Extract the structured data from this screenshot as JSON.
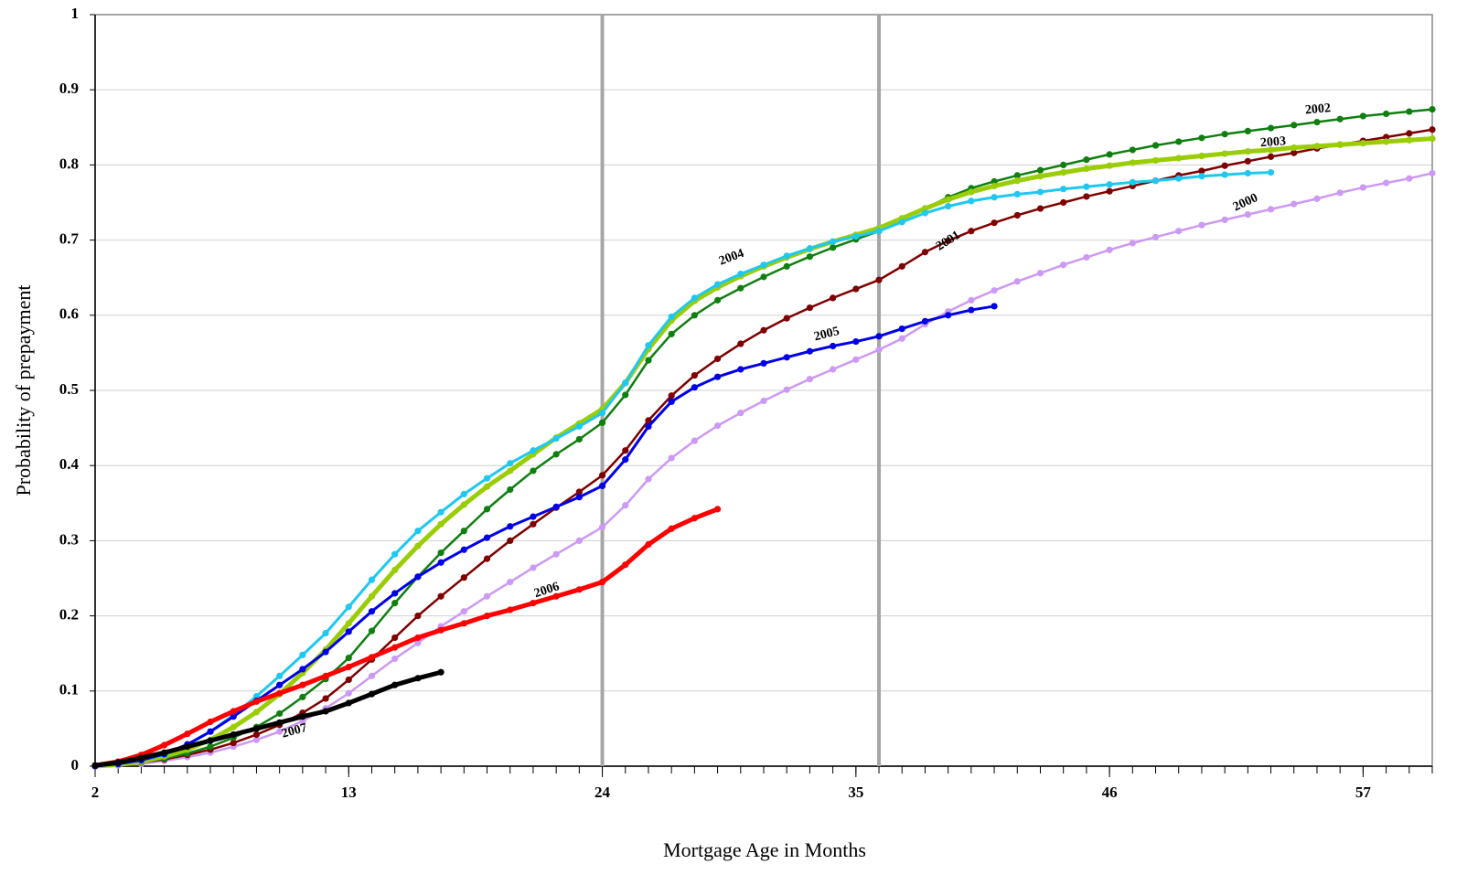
{
  "chart_data": {
    "type": "line",
    "x_label": "Mortgage Age in Months",
    "y_label": "Probability of prepayment",
    "x": [
      2,
      3,
      4,
      5,
      6,
      7,
      8,
      9,
      10,
      11,
      12,
      13,
      14,
      15,
      16,
      17,
      18,
      19,
      20,
      21,
      22,
      23,
      24,
      25,
      26,
      27,
      28,
      29,
      30,
      31,
      32,
      33,
      34,
      35,
      36,
      37,
      38,
      39,
      40,
      41,
      42,
      43,
      44,
      45,
      46,
      47,
      48,
      49,
      50,
      51,
      52,
      53,
      54,
      55,
      56,
      57,
      58,
      59,
      60
    ],
    "xlim": [
      2,
      60
    ],
    "xticks": [
      2,
      13,
      24,
      35,
      46,
      57
    ],
    "ylim": [
      0,
      1
    ],
    "yticks": [
      0,
      0.1,
      0.2,
      0.3,
      0.4,
      0.5,
      0.6,
      0.7,
      0.8,
      0.9,
      1
    ],
    "grid": true,
    "reference_lines_x": [
      24,
      36
    ],
    "series": [
      {
        "name": "2000",
        "color": "#cc99f5",
        "values": [
          0,
          0.001,
          0.003,
          0.007,
          0.012,
          0.018,
          0.026,
          0.035,
          0.046,
          0.06,
          0.077,
          0.097,
          0.12,
          0.143,
          0.164,
          0.186,
          0.206,
          0.226,
          0.245,
          0.264,
          0.282,
          0.3,
          0.318,
          0.347,
          0.382,
          0.41,
          0.433,
          0.453,
          0.47,
          0.486,
          0.501,
          0.515,
          0.528,
          0.541,
          0.554,
          0.569,
          0.588,
          0.605,
          0.62,
          0.633,
          0.645,
          0.656,
          0.667,
          0.677,
          0.687,
          0.696,
          0.704,
          0.712,
          0.72,
          0.727,
          0.734,
          0.741,
          0.748,
          0.755,
          0.763,
          0.77,
          0.776,
          0.782,
          0.789
        ]
      },
      {
        "name": "2001",
        "color": "#7f0000",
        "values": [
          0,
          0.002,
          0.005,
          0.009,
          0.015,
          0.022,
          0.031,
          0.042,
          0.055,
          0.071,
          0.09,
          0.115,
          0.142,
          0.171,
          0.2,
          0.226,
          0.251,
          0.276,
          0.3,
          0.322,
          0.344,
          0.365,
          0.387,
          0.42,
          0.46,
          0.493,
          0.52,
          0.542,
          0.562,
          0.58,
          0.596,
          0.61,
          0.623,
          0.635,
          0.647,
          0.665,
          0.684,
          0.699,
          0.712,
          0.723,
          0.733,
          0.742,
          0.75,
          0.758,
          0.765,
          0.772,
          0.779,
          0.786,
          0.792,
          0.799,
          0.805,
          0.811,
          0.816,
          0.822,
          0.827,
          0.832,
          0.837,
          0.842,
          0.847
        ]
      },
      {
        "name": "2002",
        "color": "#0f7f0f",
        "values": [
          0,
          0.002,
          0.005,
          0.01,
          0.017,
          0.026,
          0.038,
          0.052,
          0.07,
          0.092,
          0.116,
          0.144,
          0.18,
          0.217,
          0.252,
          0.284,
          0.313,
          0.342,
          0.368,
          0.393,
          0.415,
          0.435,
          0.457,
          0.494,
          0.54,
          0.575,
          0.6,
          0.62,
          0.636,
          0.651,
          0.665,
          0.678,
          0.69,
          0.701,
          0.712,
          0.727,
          0.742,
          0.757,
          0.769,
          0.778,
          0.786,
          0.793,
          0.8,
          0.807,
          0.814,
          0.82,
          0.826,
          0.831,
          0.836,
          0.841,
          0.845,
          0.849,
          0.853,
          0.857,
          0.861,
          0.865,
          0.868,
          0.871,
          0.874
        ]
      },
      {
        "name": "2003",
        "color": "#9acd06",
        "values": [
          0,
          0.002,
          0.006,
          0.013,
          0.022,
          0.035,
          0.052,
          0.072,
          0.096,
          0.124,
          0.155,
          0.19,
          0.226,
          0.261,
          0.293,
          0.322,
          0.348,
          0.372,
          0.393,
          0.415,
          0.437,
          0.456,
          0.475,
          0.51,
          0.555,
          0.593,
          0.619,
          0.637,
          0.652,
          0.665,
          0.677,
          0.688,
          0.698,
          0.707,
          0.716,
          0.729,
          0.742,
          0.754,
          0.764,
          0.772,
          0.779,
          0.785,
          0.79,
          0.795,
          0.799,
          0.803,
          0.806,
          0.809,
          0.812,
          0.815,
          0.818,
          0.82,
          0.823,
          0.825,
          0.827,
          0.829,
          0.831,
          0.833,
          0.835
        ]
      },
      {
        "name": "2004",
        "color": "#1ec8f0",
        "values": [
          0,
          0.003,
          0.008,
          0.015,
          0.028,
          0.046,
          0.068,
          0.093,
          0.12,
          0.148,
          0.177,
          0.212,
          0.248,
          0.282,
          0.313,
          0.338,
          0.362,
          0.383,
          0.403,
          0.42,
          0.436,
          0.452,
          0.47,
          0.51,
          0.56,
          0.598,
          0.623,
          0.641,
          0.655,
          0.667,
          0.679,
          0.689,
          0.698,
          0.705,
          0.712,
          0.724,
          0.736,
          0.745,
          0.752,
          0.757,
          0.761,
          0.764,
          0.768,
          0.771,
          0.774,
          0.777,
          0.779,
          0.782,
          0.785,
          0.787,
          0.789,
          0.79,
          null,
          null,
          null,
          null,
          null,
          null,
          null
        ]
      },
      {
        "name": "2005",
        "color": "#0000e6",
        "values": [
          0,
          0.003,
          0.008,
          0.016,
          0.029,
          0.046,
          0.066,
          0.087,
          0.108,
          0.129,
          0.152,
          0.179,
          0.206,
          0.23,
          0.252,
          0.271,
          0.288,
          0.304,
          0.319,
          0.332,
          0.345,
          0.358,
          0.373,
          0.408,
          0.452,
          0.485,
          0.504,
          0.518,
          0.528,
          0.536,
          0.544,
          0.552,
          0.559,
          0.565,
          0.572,
          0.582,
          0.592,
          0.6,
          0.607,
          0.612,
          null,
          null,
          null,
          null,
          null,
          null,
          null,
          null,
          null,
          null,
          null,
          null,
          null,
          null,
          null,
          null,
          null,
          null,
          null
        ]
      },
      {
        "name": "2006",
        "color": "#ff0000",
        "values": [
          0.001,
          0.006,
          0.015,
          0.028,
          0.043,
          0.059,
          0.073,
          0.086,
          0.097,
          0.108,
          0.12,
          0.132,
          0.145,
          0.158,
          0.171,
          0.181,
          0.19,
          0.2,
          0.208,
          0.217,
          0.226,
          0.235,
          0.245,
          0.268,
          0.295,
          0.316,
          0.33,
          0.342,
          null,
          null,
          null,
          null,
          null,
          null,
          null,
          null,
          null,
          null,
          null,
          null,
          null,
          null,
          null,
          null,
          null,
          null,
          null,
          null,
          null,
          null,
          null,
          null,
          null,
          null,
          null,
          null,
          null,
          null,
          null
        ]
      },
      {
        "name": "2007",
        "color": "#000000",
        "values": [
          0.001,
          0.005,
          0.011,
          0.018,
          0.026,
          0.034,
          0.042,
          0.05,
          0.058,
          0.066,
          0.073,
          0.084,
          0.096,
          0.108,
          0.117,
          0.125,
          null,
          null,
          null,
          null,
          null,
          null,
          null,
          null,
          null,
          null,
          null,
          null,
          null,
          null,
          null,
          null,
          null,
          null,
          null,
          null,
          null,
          null,
          null,
          null,
          null,
          null,
          null,
          null,
          null,
          null,
          null,
          null,
          null,
          null,
          null,
          null,
          null,
          null,
          null,
          null,
          null,
          null,
          null
        ]
      }
    ]
  }
}
